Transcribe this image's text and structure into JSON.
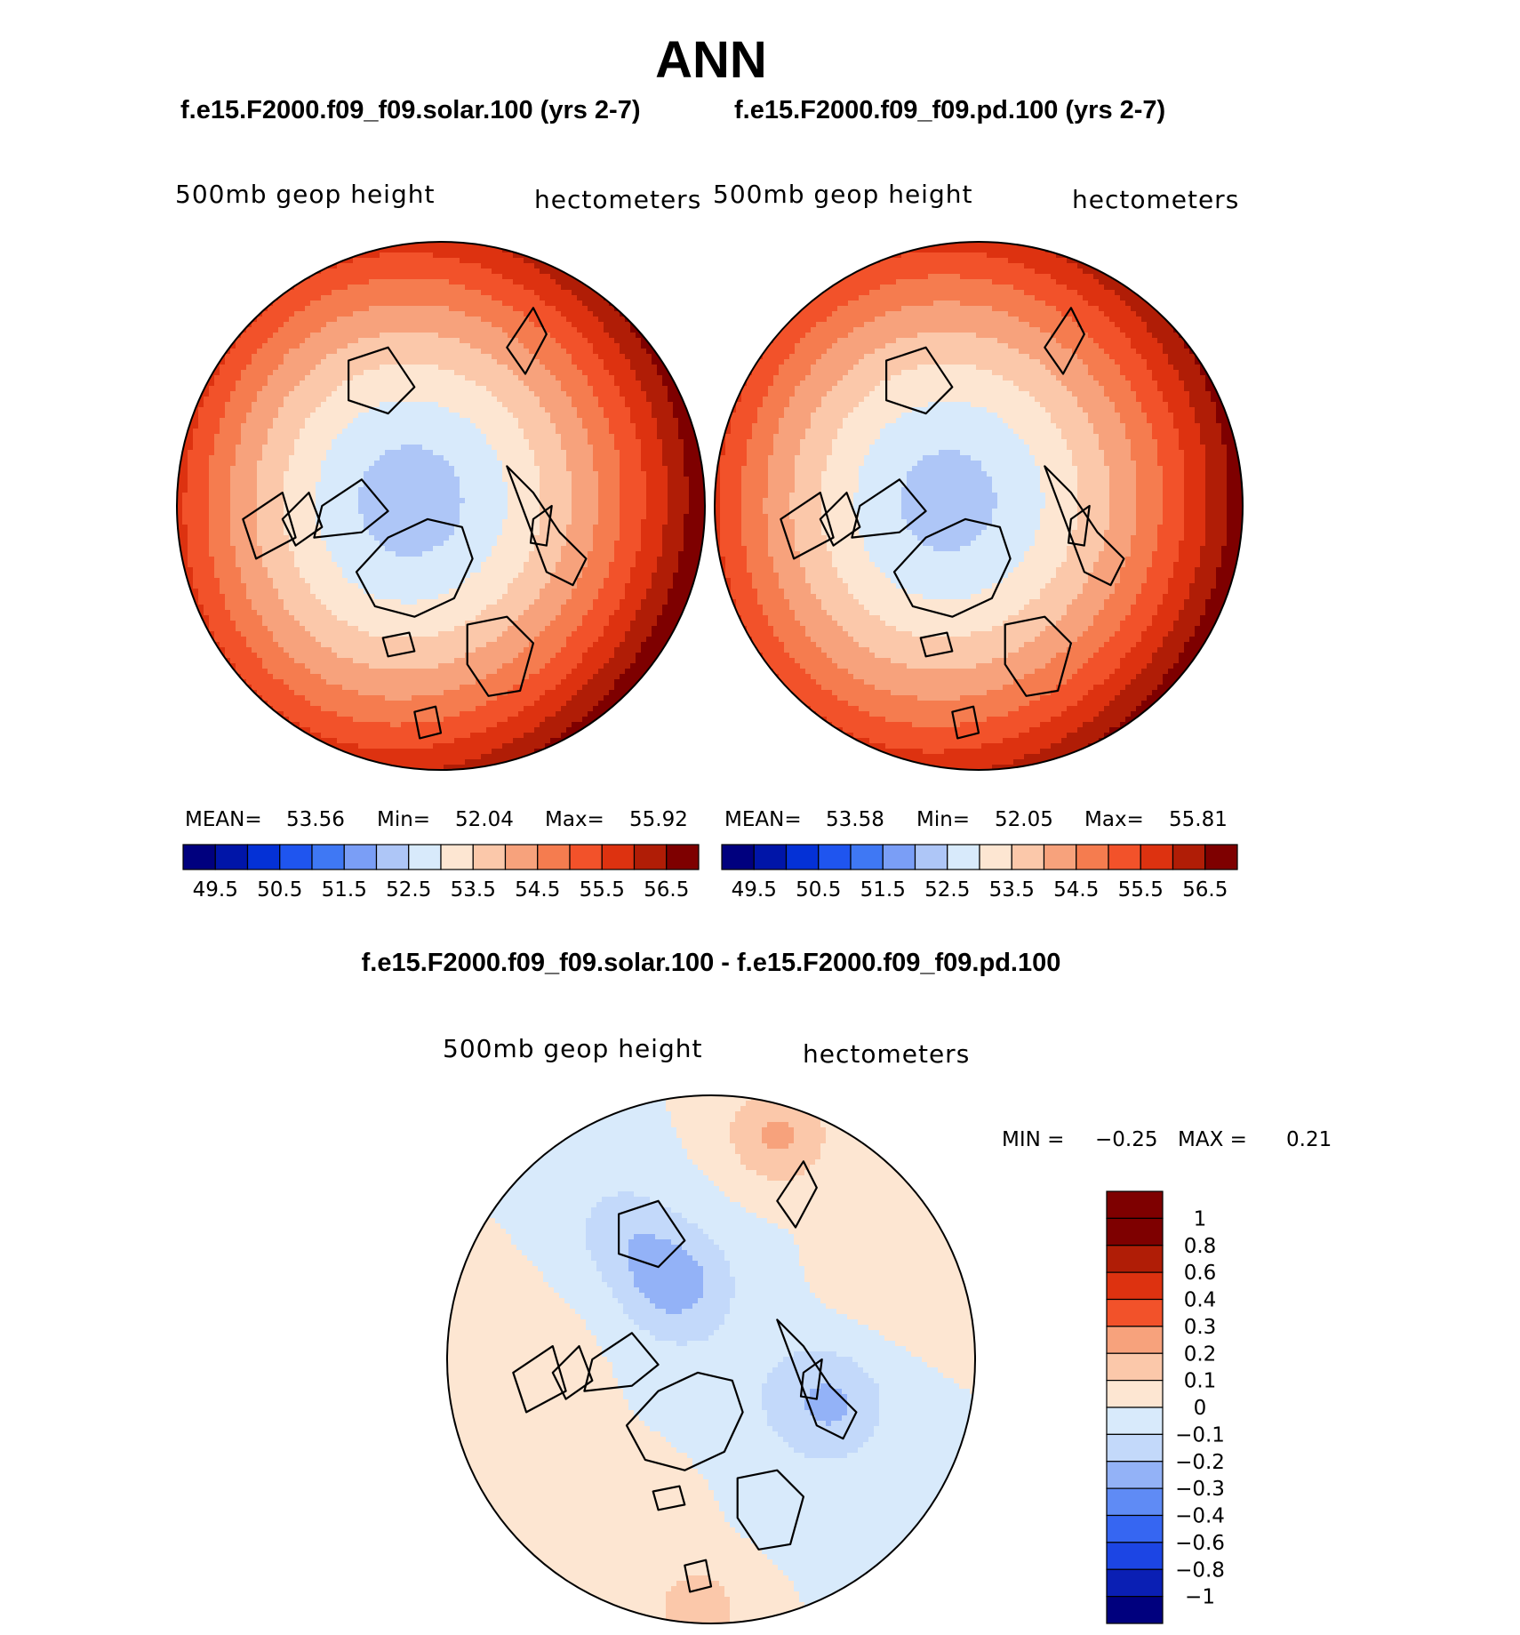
{
  "title": "ANN",
  "panels": [
    {
      "case_title": "f.e15.F2000.f09_f09.solar.100 (yrs 2-7)",
      "variable_label": "500mb geop height",
      "units_label": "hectometers",
      "stats": {
        "mean_label": "MEAN=",
        "mean": "53.56",
        "min_label": "Min=",
        "min": "52.04",
        "max_label": "Max=",
        "max": "55.92"
      },
      "fields": {
        "pole_value": 52.2,
        "equator_value": 56.6,
        "asym_x": 0.55,
        "asym_y": 0.35
      }
    },
    {
      "case_title": "f.e15.F2000.f09_f09.pd.100 (yrs 2-7)",
      "variable_label": "500mb geop height",
      "units_label": "hectometers",
      "stats": {
        "mean_label": "MEAN=",
        "mean": "53.58",
        "min_label": "Min=",
        "min": "52.05",
        "max_label": "Max=",
        "max": "55.81"
      },
      "fields": {
        "pole_value": 52.25,
        "equator_value": 56.5,
        "asym_x": 0.5,
        "asym_y": 0.3
      }
    }
  ],
  "field_colorbar": {
    "tick_labels": [
      "49.5",
      "50.5",
      "51.5",
      "52.5",
      "53.5",
      "54.5",
      "55.5",
      "56.5"
    ],
    "levels": [
      49.5,
      50,
      50.5,
      51,
      51.5,
      52,
      52.5,
      53,
      53.5,
      54,
      54.5,
      55,
      55.5,
      56,
      56.5
    ],
    "colors": [
      "#00007e",
      "#0015a8",
      "#0431d6",
      "#1f55ef",
      "#3f78f4",
      "#7a9ef6",
      "#aec6f7",
      "#d8eafb",
      "#fde6d2",
      "#fbc8aa",
      "#f7a27c",
      "#f57c4f",
      "#f2522a",
      "#dd3210",
      "#b01d06",
      "#7e0000"
    ]
  },
  "difference": {
    "title": "f.e15.F2000.f09_f09.solar.100 - f.e15.F2000.f09_f09.pd.100",
    "variable_label": "500mb geop height",
    "units_label": "hectometers",
    "stats": {
      "min_label": "MIN =",
      "min": "−0.25",
      "max_label": "MAX =",
      "max": "0.21"
    },
    "colorbar": {
      "tick_labels": [
        "1",
        "0.8",
        "0.6",
        "0.4",
        "0.3",
        "0.2",
        "0.1",
        "0",
        "−0.1",
        "−0.2",
        "−0.3",
        "−0.4",
        "−0.6",
        "−0.8",
        "−1"
      ],
      "levels": [
        -1,
        -0.8,
        -0.6,
        -0.4,
        -0.3,
        -0.2,
        -0.1,
        0,
        0.1,
        0.2,
        0.3,
        0.4,
        0.6,
        0.8,
        1
      ],
      "colors": [
        "#00007e",
        "#0a1fb4",
        "#1c45e4",
        "#3666f2",
        "#5f8bf5",
        "#93b2f7",
        "#c3d9fa",
        "#d8eafb",
        "#fde6d2",
        "#fbc8aa",
        "#f7a27c",
        "#f2522a",
        "#dd3210",
        "#b01d06",
        "#7e0000",
        "#7e0000"
      ]
    }
  }
}
